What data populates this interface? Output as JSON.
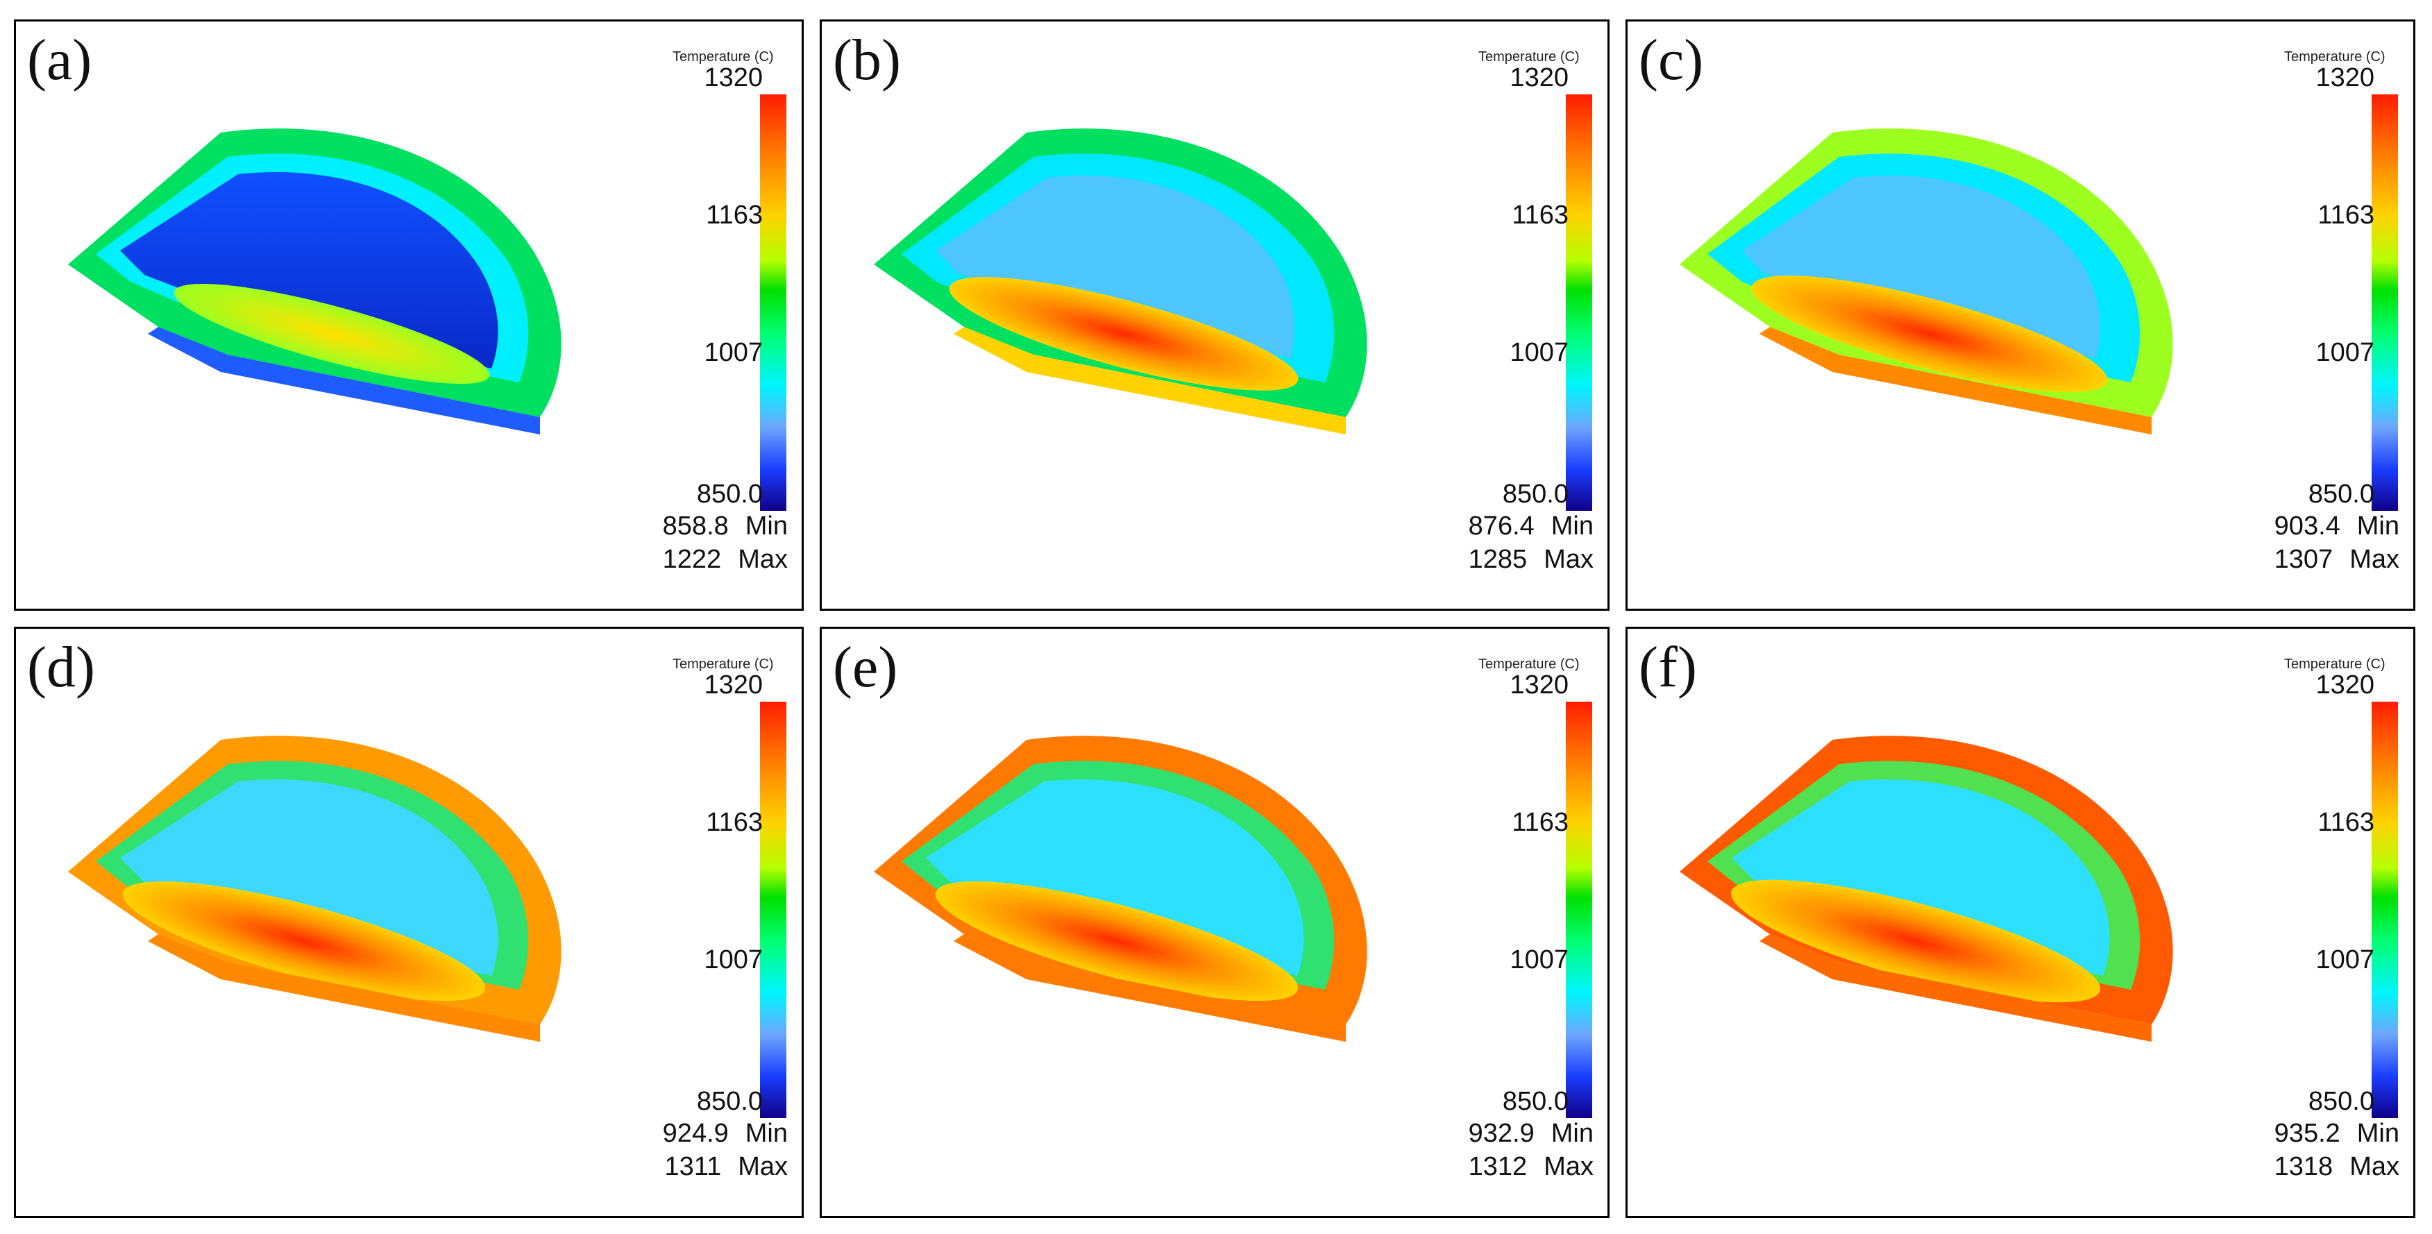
{
  "legend": {
    "title": "Temperature (C)",
    "ticks": [
      "1320",
      "1163",
      "1007",
      "850.0"
    ],
    "min_label": "Min",
    "max_label": "Max"
  },
  "colors": {
    "hot": "#ff1d00",
    "warm": "#ffd200",
    "mid": "#00e000",
    "cool": "#00f5ff",
    "cold": "#100088"
  },
  "panels": [
    {
      "label": "(a)",
      "min": "858.8",
      "max": "1222"
    },
    {
      "label": "(b)",
      "min": "876.4",
      "max": "1285"
    },
    {
      "label": "(c)",
      "min": "903.4",
      "max": "1307"
    },
    {
      "label": "(d)",
      "min": "924.9",
      "max": "1311"
    },
    {
      "label": "(e)",
      "min": "932.9",
      "max": "1312"
    },
    {
      "label": "(f)",
      "min": "935.2",
      "max": "1318"
    }
  ]
}
